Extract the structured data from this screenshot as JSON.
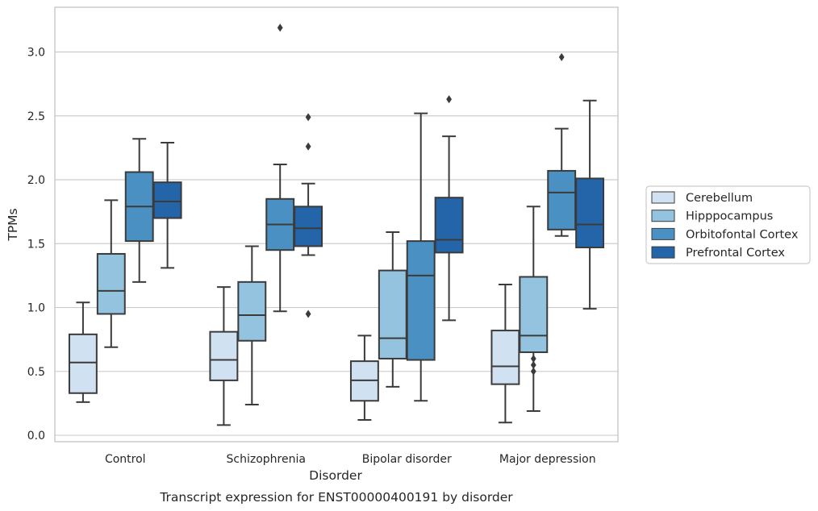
{
  "chart_data": {
    "type": "box",
    "title": "",
    "caption": "Transcript expression for ENST00000400191 by disorder",
    "xlabel": "Disorder",
    "ylabel": "TPMs",
    "ylim": [
      -0.05,
      3.35
    ],
    "yticks": [
      0.0,
      0.5,
      1.0,
      1.5,
      2.0,
      2.5,
      3.0
    ],
    "ytick_labels": [
      "0.0",
      "0.5",
      "1.0",
      "1.5",
      "2.0",
      "2.5",
      "3.0"
    ],
    "grid": "horizontal",
    "legend_position": "right",
    "categories": [
      "Control",
      "Schizophrenia",
      "Bipolar disorder",
      "Major depression"
    ],
    "series": [
      {
        "name": "Cerebellum",
        "color": "#d0e1f1",
        "boxes": [
          {
            "whisker_low": 0.26,
            "q1": 0.33,
            "median": 0.57,
            "q3": 0.79,
            "whisker_high": 1.04,
            "outliers": []
          },
          {
            "whisker_low": 0.08,
            "q1": 0.43,
            "median": 0.59,
            "q3": 0.81,
            "whisker_high": 1.16,
            "outliers": []
          },
          {
            "whisker_low": 0.12,
            "q1": 0.27,
            "median": 0.43,
            "q3": 0.58,
            "whisker_high": 0.78,
            "outliers": []
          },
          {
            "whisker_low": 0.1,
            "q1": 0.4,
            "median": 0.54,
            "q3": 0.82,
            "whisker_high": 1.18,
            "outliers": []
          }
        ]
      },
      {
        "name": "Hipppocampus",
        "color": "#94c3df",
        "boxes": [
          {
            "whisker_low": 0.69,
            "q1": 0.95,
            "median": 1.13,
            "q3": 1.42,
            "whisker_high": 1.84,
            "outliers": []
          },
          {
            "whisker_low": 0.24,
            "q1": 0.74,
            "median": 0.94,
            "q3": 1.2,
            "whisker_high": 1.48,
            "outliers": []
          },
          {
            "whisker_low": 0.38,
            "q1": 0.6,
            "median": 0.76,
            "q3": 1.29,
            "whisker_high": 1.59,
            "outliers": []
          },
          {
            "whisker_low": 0.19,
            "q1": 0.65,
            "median": 0.78,
            "q3": 1.24,
            "whisker_high": 1.79,
            "outliers": [
              0.5,
              0.55,
              0.6
            ]
          }
        ]
      },
      {
        "name": "Orbitofontal Cortex",
        "color": "#4a90c2",
        "boxes": [
          {
            "whisker_low": 1.2,
            "q1": 1.52,
            "median": 1.79,
            "q3": 2.06,
            "whisker_high": 2.32,
            "outliers": []
          },
          {
            "whisker_low": 0.97,
            "q1": 1.45,
            "median": 1.65,
            "q3": 1.85,
            "whisker_high": 2.12,
            "outliers": [
              3.19
            ]
          },
          {
            "whisker_low": 0.27,
            "q1": 0.59,
            "median": 1.25,
            "q3": 1.52,
            "whisker_high": 2.52,
            "outliers": []
          },
          {
            "whisker_low": 1.56,
            "q1": 1.61,
            "median": 1.9,
            "q3": 2.07,
            "whisker_high": 2.4,
            "outliers": [
              2.96
            ]
          }
        ]
      },
      {
        "name": "Prefrontal Cortex",
        "color": "#2365a8",
        "boxes": [
          {
            "whisker_low": 1.31,
            "q1": 1.7,
            "median": 1.83,
            "q3": 1.98,
            "whisker_high": 2.29,
            "outliers": []
          },
          {
            "whisker_low": 1.41,
            "q1": 1.48,
            "median": 1.62,
            "q3": 1.79,
            "whisker_high": 1.97,
            "outliers": [
              0.95,
              2.26,
              2.49
            ]
          },
          {
            "whisker_low": 0.9,
            "q1": 1.43,
            "median": 1.53,
            "q3": 1.86,
            "whisker_high": 2.34,
            "outliers": [
              2.63
            ]
          },
          {
            "whisker_low": 0.99,
            "q1": 1.47,
            "median": 1.65,
            "q3": 2.01,
            "whisker_high": 2.62,
            "outliers": []
          }
        ]
      }
    ]
  }
}
